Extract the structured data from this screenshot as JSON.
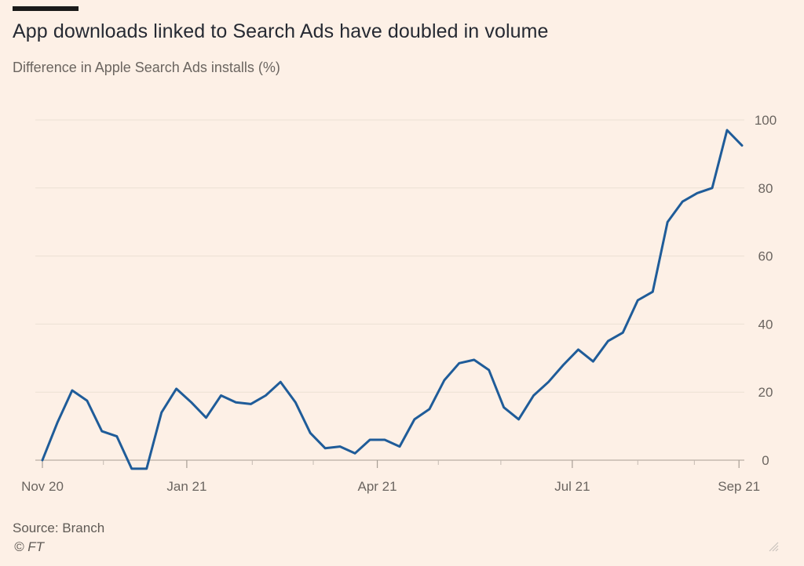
{
  "header": {
    "title": "App downloads linked to Search Ads have doubled in volume",
    "subtitle": "Difference in Apple Search Ads installs (%)"
  },
  "footer": {
    "source": "Source: Branch",
    "copyright": "© FT"
  },
  "colors": {
    "background": "#fdf0e6",
    "line": "#1f5c99",
    "grid": "#ece0d4",
    "text": "#262a33",
    "muted": "#6b6560"
  },
  "chart_data": {
    "type": "line",
    "title": "App downloads linked to Search Ads have doubled in volume",
    "subtitle": "Difference in Apple Search Ads installs (%)",
    "xlabel": "",
    "ylabel": "",
    "ylim": [
      0,
      100
    ],
    "y_axis_position": "right",
    "grid": true,
    "y_ticks": [
      "0",
      "20",
      "40",
      "60",
      "80",
      "100"
    ],
    "x_tick_labels": [
      "Nov 20",
      "Jan 21",
      "Apr 21",
      "Jul 21",
      "Sep 21"
    ],
    "x_tick_weeks": [
      0,
      9.7,
      22.5,
      35.6,
      46.8
    ],
    "x_minor_tick_weeks": [
      4.1,
      14.1,
      18.2,
      26.6,
      30.8,
      40.0,
      43.8
    ],
    "series": [
      {
        "values": [
          0,
          11,
          20.5,
          17.5,
          8.5,
          7,
          -2.5,
          -2.5,
          14,
          21,
          17,
          12.5,
          19,
          17,
          16.5,
          19,
          23,
          17,
          8,
          3.5,
          4,
          2,
          6,
          6,
          4,
          12,
          15,
          23.5,
          28.5,
          29.5,
          26.5,
          15.5,
          12,
          19,
          23,
          28,
          32.5,
          29,
          35,
          37.5,
          47,
          49.5,
          70,
          76,
          78.5,
          80,
          97,
          92.5
        ]
      }
    ]
  }
}
